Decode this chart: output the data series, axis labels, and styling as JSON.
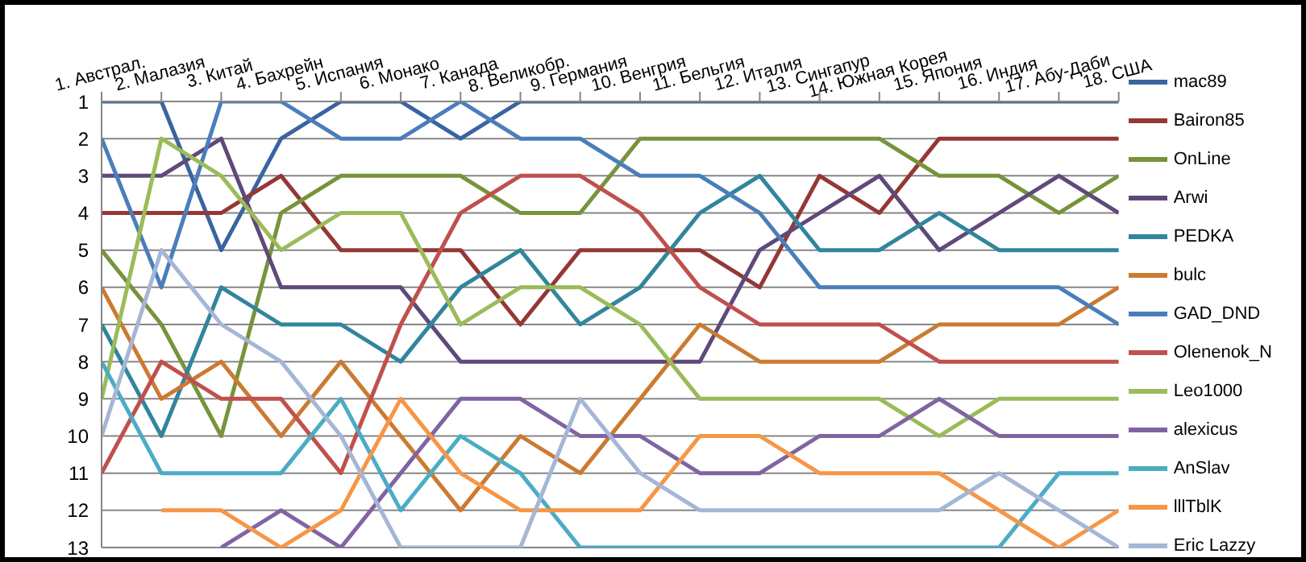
{
  "chart_data": {
    "type": "line",
    "categories": [
      "1. Австрал.",
      "2. Малазия",
      "3. Китай",
      "4. Бахрейн",
      "5. Испания",
      "6. Монако",
      "7. Канада",
      "8. Великобр.",
      "9. Германия",
      "10. Венгрия",
      "11. Бельгия",
      "12. Италия",
      "13. Сингапур",
      "14. Южная Корея",
      "15. Япония",
      "16. Индия",
      "17. Абу-Даби",
      "18. США"
    ],
    "series": [
      {
        "name": "mac89",
        "color": "#3a64a0",
        "values": [
          1,
          1,
          5,
          2,
          1,
          1,
          2,
          1,
          1,
          1,
          1,
          1,
          1,
          1,
          1,
          1,
          1,
          1
        ]
      },
      {
        "name": "Bairon85",
        "color": "#953735",
        "values": [
          4,
          4,
          4,
          3,
          5,
          5,
          5,
          7,
          5,
          5,
          5,
          6,
          3,
          4,
          2,
          2,
          2,
          2
        ]
      },
      {
        "name": "OnLine",
        "color": "#77933c",
        "values": [
          5,
          7,
          10,
          4,
          3,
          3,
          3,
          4,
          4,
          2,
          2,
          2,
          2,
          2,
          3,
          3,
          4,
          3
        ]
      },
      {
        "name": "Arwi",
        "color": "#5f497a",
        "values": [
          3,
          3,
          2,
          6,
          6,
          6,
          8,
          8,
          8,
          8,
          8,
          5,
          4,
          3,
          5,
          4,
          3,
          4
        ]
      },
      {
        "name": "PEDKA",
        "color": "#31859c",
        "values": [
          7,
          10,
          6,
          7,
          7,
          8,
          6,
          5,
          7,
          6,
          4,
          3,
          5,
          5,
          4,
          5,
          5,
          5
        ]
      },
      {
        "name": "bulc",
        "color": "#cc7a32",
        "values": [
          6,
          9,
          8,
          10,
          8,
          10,
          12,
          10,
          11,
          9,
          7,
          8,
          8,
          8,
          7,
          7,
          7,
          6
        ]
      },
      {
        "name": "GAD_DND",
        "color": "#4a7ebb",
        "values": [
          2,
          6,
          1,
          1,
          2,
          2,
          1,
          2,
          2,
          3,
          3,
          4,
          6,
          6,
          6,
          6,
          6,
          7
        ]
      },
      {
        "name": "Olenenok_N",
        "color": "#c0504d",
        "values": [
          11,
          8,
          9,
          9,
          11,
          7,
          4,
          3,
          3,
          4,
          6,
          7,
          7,
          7,
          8,
          8,
          8,
          8
        ]
      },
      {
        "name": "Leo1000",
        "color": "#9bbb59",
        "values": [
          9,
          2,
          3,
          5,
          4,
          4,
          7,
          6,
          6,
          7,
          9,
          9,
          9,
          9,
          10,
          9,
          9,
          9
        ]
      },
      {
        "name": "alexicus",
        "color": "#8064a2",
        "values": [
          null,
          null,
          13,
          12,
          13,
          11,
          9,
          9,
          10,
          10,
          11,
          11,
          10,
          10,
          9,
          10,
          10,
          10
        ]
      },
      {
        "name": "AnSlav",
        "color": "#4bacc6",
        "values": [
          8,
          11,
          11,
          11,
          9,
          12,
          10,
          11,
          13,
          13,
          13,
          13,
          13,
          13,
          13,
          13,
          11,
          11
        ]
      },
      {
        "name": "lllTblK",
        "color": "#f79646",
        "values": [
          null,
          12,
          12,
          13,
          12,
          9,
          11,
          12,
          12,
          12,
          10,
          10,
          11,
          11,
          11,
          12,
          13,
          12
        ]
      },
      {
        "name": "Eric Lazzy",
        "color": "#a5b6d6",
        "values": [
          10,
          5,
          7,
          8,
          10,
          13,
          13,
          13,
          9,
          11,
          12,
          12,
          12,
          12,
          12,
          11,
          12,
          13
        ]
      }
    ],
    "ylim": [
      13,
      1
    ],
    "yticks": [
      1,
      2,
      3,
      4,
      5,
      6,
      7,
      8,
      9,
      10,
      11,
      12,
      13
    ],
    "grid": "y",
    "legend": "right",
    "marker": "none",
    "line_style": "solid"
  }
}
